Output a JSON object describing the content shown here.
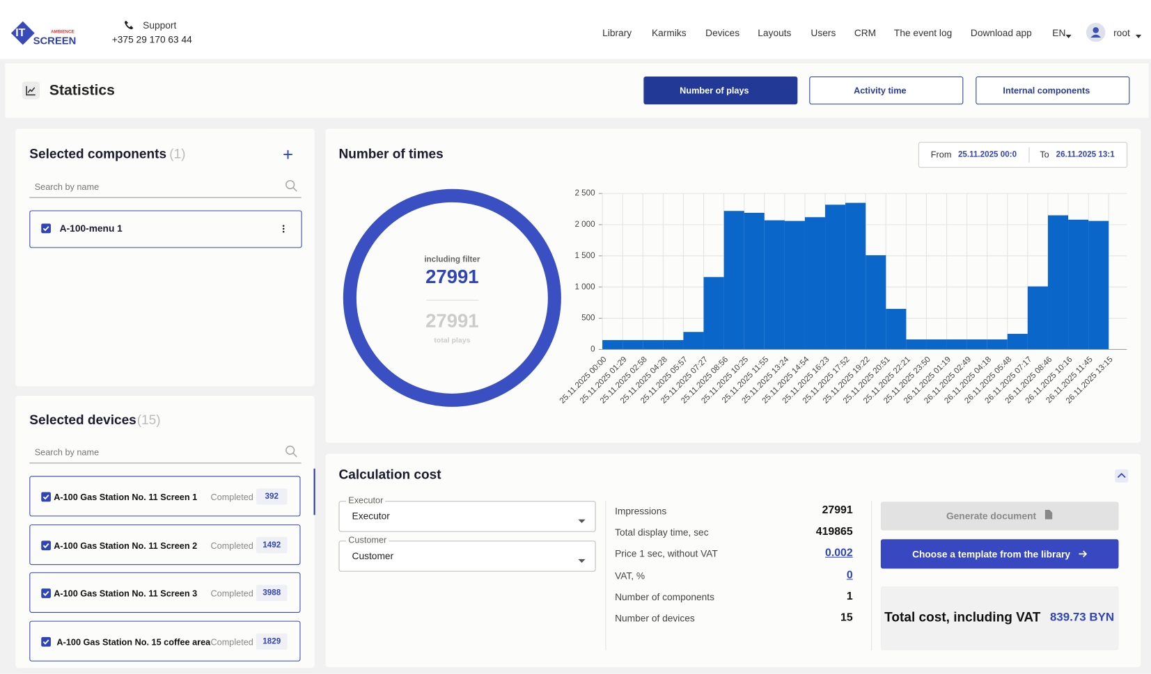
{
  "header": {
    "logo_mark": "IT",
    "logo_small": "AMBIENCE",
    "logo_main": "SCREEN",
    "support_label": "Support",
    "support_phone": "+375 29 170 63 44",
    "nav": [
      "Library",
      "Karmiks",
      "Devices",
      "Layouts",
      "Users",
      "CRM",
      "The event log",
      "Download app"
    ],
    "language": "EN",
    "user": "root"
  },
  "page": {
    "title": "Statistics",
    "tabs": [
      "Number of plays",
      "Activity time",
      "Internal components"
    ]
  },
  "components": {
    "title": "Selected components",
    "count": "(1)",
    "search_placeholder": "Search by name",
    "items": [
      "A-100-menu 1"
    ]
  },
  "devices": {
    "title": "Selected devices",
    "count": "(15)",
    "search_placeholder": "Search by name",
    "items": [
      {
        "name": "A-100 Gas Station No. 11 Screen 1",
        "status": "Completed",
        "plays": 392
      },
      {
        "name": "A-100 Gas Station No. 11 Screen 2",
        "status": "Completed",
        "plays": 1492
      },
      {
        "name": "A-100 Gas Station No. 11 Screen 3",
        "status": "Completed",
        "plays": 3988
      },
      {
        "name": "A-100 Gas Station No. 15 coffee area",
        "status": "Completed",
        "plays": 1829
      }
    ]
  },
  "chart_panel": {
    "title": "Number of times",
    "from_label": "From",
    "from_value": "25.11.2025 00:0",
    "to_label": "To",
    "to_value": "26.11.2025 13:1"
  },
  "donut": {
    "filter_label": "including filter",
    "filter_value": 27991,
    "total_value": 27991,
    "total_label": "total plays"
  },
  "chart_data": {
    "type": "histogram",
    "color": "#0a66c8",
    "grid": true,
    "bins": [
      "25.11.2025 00:00",
      "25.11.2025 01:29",
      "25.11.2025 02:58",
      "25.11.2025 04:28",
      "25.11.2025 05:57",
      "25.11.2025 07:27",
      "25.11.2025 08:56",
      "25.11.2025 10:25",
      "25.11.2025 11:55",
      "25.11.2025 13:24",
      "25.11.2025 14:54",
      "25.11.2025 16:23",
      "25.11.2025 17:52",
      "25.11.2025 19:22",
      "25.11.2025 20:51",
      "25.11.2025 22:21",
      "25.11.2025 23:50",
      "26.11.2025 01:19",
      "26.11.2025 02:49",
      "26.11.2025 04:18",
      "26.11.2025 05:48",
      "26.11.2025 07:17",
      "26.11.2025 08:46",
      "26.11.2025 10:16",
      "26.11.2025 11:45",
      "26.11.2025 13:15"
    ],
    "values": [
      150,
      150,
      150,
      150,
      280,
      1160,
      2220,
      2190,
      2070,
      2060,
      2120,
      2320,
      2350,
      1510,
      650,
      160,
      160,
      160,
      160,
      160,
      250,
      1010,
      2150,
      2080,
      2060
    ],
    "ylim": [
      0,
      2500
    ],
    "yticks": [
      0,
      500,
      {
        "value": 1000,
        "label": "1 000"
      },
      {
        "value": 1500,
        "label": "1 500"
      },
      {
        "value": 2000,
        "label": "2 000"
      },
      {
        "value": 2500,
        "label": "2 500"
      }
    ]
  },
  "cost": {
    "title": "Calculation cost",
    "executor_label": "Executor",
    "executor_value": "Executor",
    "customer_label": "Customer",
    "customer_value": "Customer",
    "rows": [
      {
        "label": "Impressions",
        "value": 27991
      },
      {
        "label": "Total display time, sec",
        "value": 419865
      },
      {
        "label": "Price 1 sec, without VAT",
        "value": 0.002
      },
      {
        "label": "VAT, %",
        "value": 0
      },
      {
        "label": "Number of components",
        "value": 1
      },
      {
        "label": "Number of devices",
        "value": 15
      }
    ],
    "generate": "Generate document",
    "template": "Choose a template from the library",
    "total_label": "Total cost, including VAT",
    "total_value": "839.73 BYN"
  }
}
